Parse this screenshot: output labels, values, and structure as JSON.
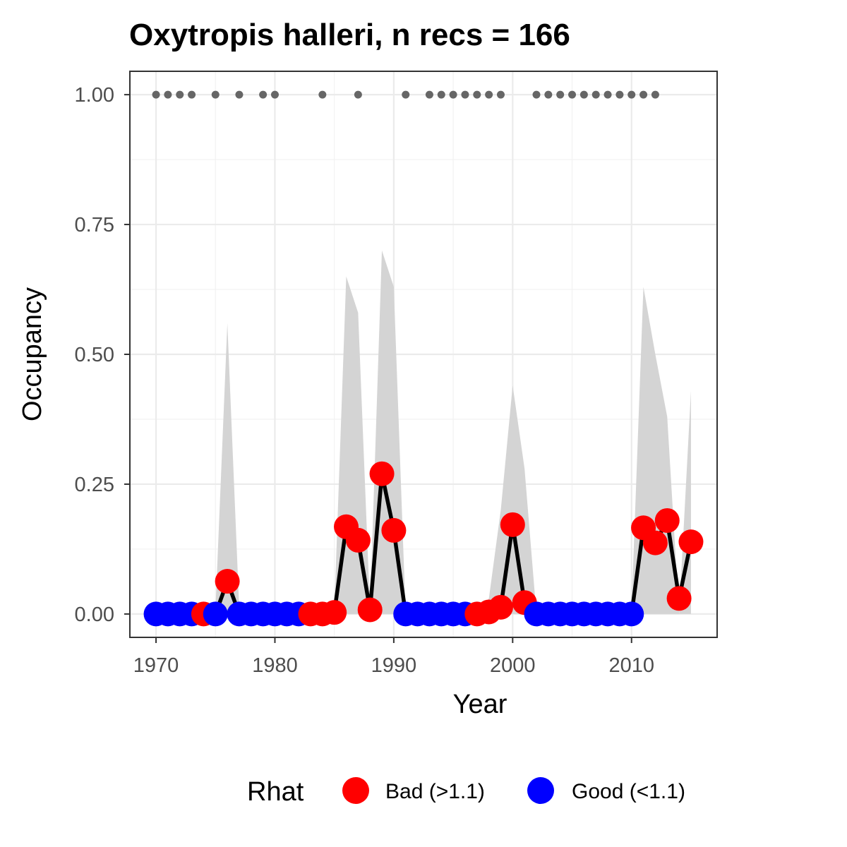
{
  "chart_data": {
    "type": "line",
    "title": "Oxytropis halleri, n recs = 166",
    "xlabel": "Year",
    "ylabel": "Occupancy",
    "xlim": [
      1967.8,
      2017.2
    ],
    "ylim": [
      -0.045,
      1.045
    ],
    "x_ticks": [
      1970,
      1980,
      1990,
      2000,
      2010
    ],
    "x_tick_labels": [
      "1970",
      "1980",
      "1990",
      "2000",
      "2010"
    ],
    "y_ticks": [
      0,
      0.25,
      0.5,
      0.75,
      1.0
    ],
    "y_tick_labels": [
      "0.00",
      "0.25",
      "0.50",
      "0.75",
      "1.00"
    ],
    "grid": true,
    "legend": {
      "title": "Rhat",
      "position": "bottom",
      "entries": [
        {
          "label": "Bad (>1.1)",
          "color": "#FF0000"
        },
        {
          "label": "Good (<1.1)",
          "color": "#0000FF"
        }
      ]
    },
    "colors": {
      "bad": "#FF0000",
      "good": "#0000FF",
      "ribbon": "#D4D4D4",
      "line": "#000000",
      "record_dots": "#666666"
    },
    "series": [
      {
        "x": [
          1970,
          1971,
          1972,
          1973,
          1974,
          1975,
          1976,
          1977,
          1978,
          1979,
          1980,
          1981,
          1982,
          1983,
          1984,
          1985,
          1986,
          1987,
          1988,
          1989,
          1990,
          1991,
          1992,
          1993,
          1994,
          1995,
          1996,
          1997,
          1998,
          1999,
          2000,
          2001,
          2002,
          2003,
          2004,
          2005,
          2006,
          2007,
          2008,
          2009,
          2010,
          2011,
          2012,
          2013,
          2014,
          2015
        ],
        "y": [
          0,
          0,
          0,
          0,
          0,
          0,
          0.063,
          0,
          0,
          0,
          0,
          0,
          0,
          0,
          0,
          0.003,
          0.168,
          0.142,
          0.008,
          0.27,
          0.161,
          0,
          0,
          0,
          0,
          0,
          0,
          0,
          0.004,
          0.013,
          0.172,
          0.022,
          0,
          0,
          0,
          0,
          0,
          0,
          0,
          0,
          0,
          0.166,
          0.137,
          0.18,
          0.03,
          0.139
        ],
        "rhat": [
          "good",
          "good",
          "good",
          "good",
          "bad",
          "good",
          "bad",
          "good",
          "good",
          "good",
          "good",
          "good",
          "good",
          "bad",
          "bad",
          "bad",
          "bad",
          "bad",
          "bad",
          "bad",
          "bad",
          "good",
          "good",
          "good",
          "good",
          "good",
          "good",
          "bad",
          "bad",
          "bad",
          "bad",
          "bad",
          "good",
          "good",
          "good",
          "good",
          "good",
          "good",
          "good",
          "good",
          "good",
          "bad",
          "bad",
          "bad",
          "bad",
          "bad"
        ],
        "lower": [
          0,
          0,
          0,
          0,
          0,
          0,
          0,
          0,
          0,
          0,
          0,
          0,
          0,
          0,
          0,
          0,
          0,
          0,
          0,
          0,
          0,
          0,
          0,
          0,
          0,
          0,
          0,
          0,
          0,
          0,
          0,
          0,
          0,
          0,
          0,
          0,
          0,
          0,
          0,
          0,
          0,
          0,
          0,
          0,
          0,
          0
        ],
        "upper": [
          0,
          0,
          0,
          0,
          0,
          0.01,
          0.56,
          0.01,
          0,
          0,
          0,
          0,
          0,
          0,
          0,
          0.01,
          0.65,
          0.58,
          0.01,
          0.7,
          0.63,
          0,
          0,
          0,
          0,
          0,
          0,
          0,
          0.03,
          0.2,
          0.44,
          0.28,
          0,
          0,
          0,
          0,
          0,
          0,
          0,
          0,
          0.01,
          0.63,
          0.5,
          0.38,
          0,
          0.43
        ]
      }
    ],
    "record_years": [
      1970,
      1971,
      1972,
      1973,
      1975,
      1977,
      1979,
      1980,
      1984,
      1987,
      1991,
      1993,
      1994,
      1995,
      1996,
      1997,
      1998,
      1999,
      2002,
      2003,
      2004,
      2005,
      2006,
      2007,
      2008,
      2009,
      2010,
      2011,
      2012
    ],
    "record_y": 1.0
  }
}
